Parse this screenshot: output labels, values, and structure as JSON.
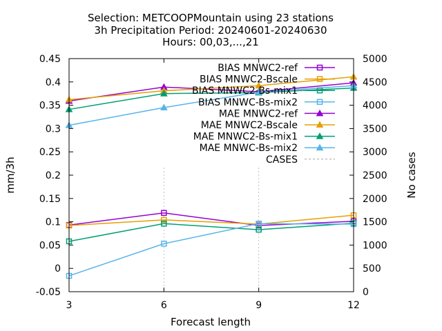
{
  "chart_data": {
    "type": "line",
    "title_lines": [
      "Selection: METCOOPMountain using    23 stations",
      "3h Precipitation   Period: 20240601-20240630",
      "Hours: 00,03,...,21"
    ],
    "xlabel": "Forecast length",
    "ylabel": "mm/3h",
    "y2label": "No cases",
    "x": [
      3,
      6,
      9,
      12
    ],
    "xlim": [
      3,
      12
    ],
    "ylim": [
      -0.05,
      0.45
    ],
    "y2lim": [
      0,
      5000
    ],
    "x_ticks": [
      "3",
      "6",
      "9",
      "12"
    ],
    "y_ticks": [
      "-0.05",
      "0",
      "0.05",
      "0.1",
      "0.15",
      "0.2",
      "0.25",
      "0.3",
      "0.35",
      "0.4",
      "0.45"
    ],
    "y2_ticks": [
      "0",
      "500",
      "1000",
      "1500",
      "2000",
      "2500",
      "3000",
      "3500",
      "4000",
      "4500",
      "5000"
    ],
    "grid": "partial dashed verticals at 6 and 9",
    "legend_position": "top-right, inside",
    "series": [
      {
        "name": "BIAS MNWC2-ref",
        "axis": "y",
        "marker": "open-square",
        "color": "#9400d3",
        "values": [
          0.093,
          0.119,
          0.092,
          0.101
        ]
      },
      {
        "name": "BIAS MNWC2-Bscale",
        "axis": "y",
        "marker": "open-square",
        "color": "#e69f00",
        "values": [
          0.092,
          0.104,
          0.095,
          0.114
        ]
      },
      {
        "name": "BIAS MNWC2-Bs-mix1",
        "axis": "y",
        "marker": "open-square",
        "color": "#009e73",
        "values": [
          0.058,
          0.096,
          0.083,
          0.097
        ]
      },
      {
        "name": "BIAS MNWC-Bs-mix2",
        "axis": "y",
        "marker": "open-square",
        "color": "#56b4e9",
        "values": [
          -0.016,
          0.053,
          0.096,
          0.095
        ]
      },
      {
        "name": "MAE MNWC2-ref",
        "axis": "y",
        "marker": "filled-triangle",
        "color": "#9400d3",
        "values": [
          0.359,
          0.389,
          0.379,
          0.398
        ]
      },
      {
        "name": "MAE MNWC2-Bscale",
        "axis": "y",
        "marker": "filled-triangle",
        "color": "#e69f00",
        "values": [
          0.362,
          0.381,
          0.392,
          0.411
        ]
      },
      {
        "name": "MAE MNWC2-Bs-mix1",
        "axis": "y",
        "marker": "filled-triangle",
        "color": "#009e73",
        "values": [
          0.341,
          0.375,
          0.377,
          0.387
        ]
      },
      {
        "name": "MAE MNWC-Bs-mix2",
        "axis": "y",
        "marker": "filled-triangle",
        "color": "#56b4e9",
        "values": [
          0.307,
          0.345,
          0.378,
          0.392
        ]
      },
      {
        "name": "CASES",
        "axis": "y2",
        "marker": "none",
        "dash": true,
        "color": "#a0a0a0",
        "values": [
          5000,
          5000,
          5000,
          5000
        ]
      }
    ]
  }
}
